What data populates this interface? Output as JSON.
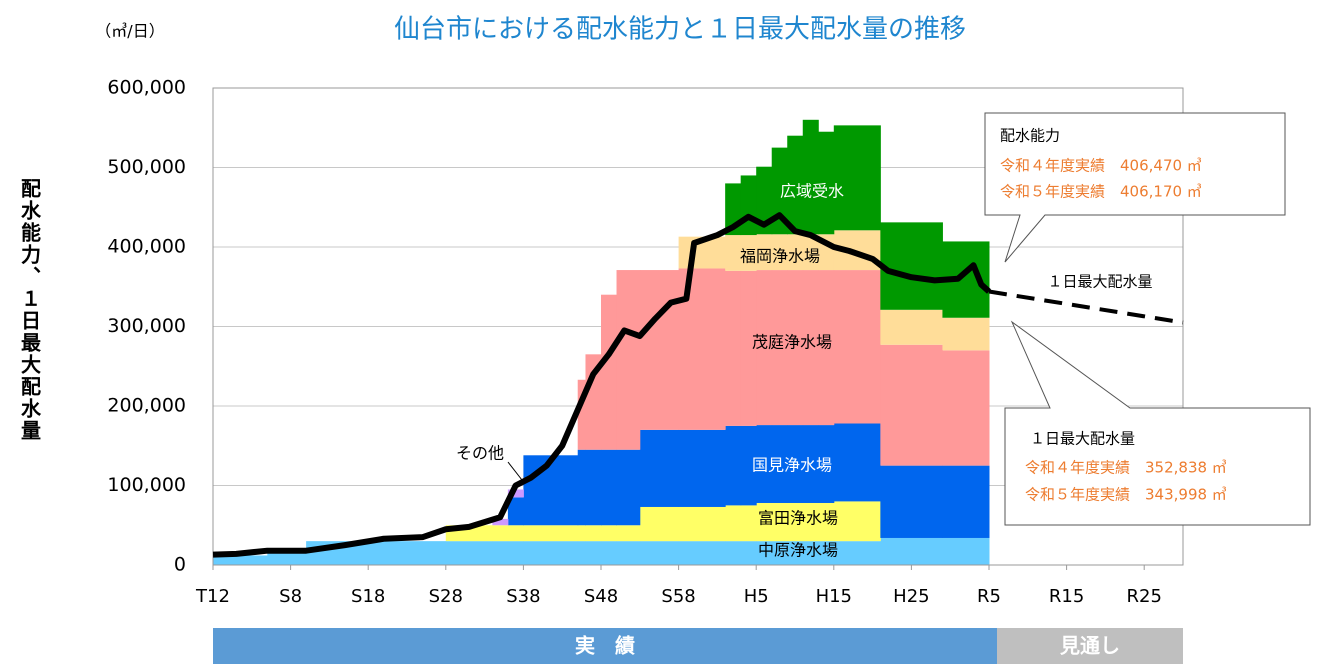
{
  "chart_data": {
    "type": "stacked-step-area-line",
    "title": "仙台市における配水能力と１日最大配水量の推移",
    "unit_label": "（㎥/日）",
    "ylabel": "配水能力、１日最大配水量",
    "xlim": [
      1923,
      2048
    ],
    "xticks": [
      {
        "value": 1923,
        "label": "T12"
      },
      {
        "value": 1933,
        "label": "S8"
      },
      {
        "value": 1943,
        "label": "S18"
      },
      {
        "value": 1953,
        "label": "S28"
      },
      {
        "value": 1963,
        "label": "S38"
      },
      {
        "value": 1973,
        "label": "S48"
      },
      {
        "value": 1983,
        "label": "S58"
      },
      {
        "value": 1993,
        "label": "H5"
      },
      {
        "value": 2003,
        "label": "H15"
      },
      {
        "value": 2013,
        "label": "H25"
      },
      {
        "value": 2023,
        "label": "R5"
      },
      {
        "value": 2033,
        "label": "R15"
      },
      {
        "value": 2043,
        "label": "R25"
      }
    ],
    "ylim": [
      0,
      600000
    ],
    "yticks": [
      0,
      {
        "value": 100000,
        "label": "100,000"
      },
      {
        "value": 200000,
        "label": "200,000"
      },
      {
        "value": 300000,
        "label": "300,000"
      },
      {
        "value": 400000,
        "label": "400,000"
      },
      {
        "value": 500000,
        "label": "500,000"
      },
      {
        "value": 600000,
        "label": "600,000"
      }
    ],
    "grid": true,
    "x": [
      1923,
      1930,
      1935,
      1953,
      1959,
      1961,
      1963,
      1970,
      1971,
      1973,
      1975,
      1978,
      1983,
      1989,
      1991,
      1993,
      1995,
      1997,
      1999,
      2001,
      2003,
      2009,
      2017,
      2023
    ],
    "series": [
      {
        "name": "中原浄水場",
        "color": "#66ccff",
        "values": [
          12000,
          18000,
          30000,
          30000,
          30000,
          30000,
          30000,
          30000,
          30000,
          30000,
          30000,
          30000,
          30000,
          30000,
          30000,
          30000,
          30000,
          30000,
          30000,
          30000,
          30000,
          34000,
          34000,
          34000
        ]
      },
      {
        "name": "富田浄水場",
        "color": "#ffff66",
        "values": [
          0,
          0,
          0,
          20000,
          20000,
          20000,
          20000,
          20000,
          20000,
          20000,
          20000,
          43000,
          43000,
          45000,
          45000,
          48000,
          48000,
          48000,
          48000,
          48000,
          50000,
          0,
          0,
          0
        ]
      },
      {
        "name": "国見浄水場",
        "color": "#0066ee",
        "values": [
          0,
          0,
          0,
          0,
          0,
          35000,
          88000,
          95000,
          95000,
          95000,
          95000,
          97000,
          97000,
          100000,
          100000,
          98000,
          98000,
          98000,
          98000,
          98000,
          98000,
          91000,
          91000,
          91000
        ]
      },
      {
        "name": "その他",
        "color": "#cc99ff",
        "values": [
          0,
          0,
          0,
          0,
          8000,
          10000,
          0,
          0,
          0,
          0,
          0,
          0,
          0,
          0,
          0,
          0,
          0,
          0,
          0,
          0,
          0,
          0,
          0,
          0
        ]
      },
      {
        "name": "茂庭浄水場",
        "color": "#ff9999",
        "values": [
          0,
          0,
          0,
          0,
          0,
          0,
          0,
          88000,
          120000,
          195000,
          226000,
          201000,
          203000,
          195000,
          195000,
          195000,
          195000,
          195000,
          195000,
          195000,
          193000,
          152000,
          145000,
          145000
        ]
      },
      {
        "name": "福岡浄水場",
        "color": "#ffdd99",
        "values": [
          0,
          0,
          0,
          0,
          0,
          0,
          0,
          0,
          0,
          0,
          0,
          0,
          40000,
          45000,
          45000,
          45000,
          45000,
          45000,
          45000,
          45000,
          50000,
          44000,
          41000,
          41000
        ]
      },
      {
        "name": "広域受水",
        "color": "#009900",
        "values": [
          0,
          0,
          0,
          0,
          0,
          0,
          0,
          0,
          0,
          0,
          0,
          0,
          0,
          65000,
          75000,
          85000,
          109000,
          124000,
          144000,
          129000,
          132000,
          110000,
          96000,
          96000
        ]
      }
    ],
    "line": {
      "name": "１日最大配水量",
      "color": "#000000",
      "x": [
        1923,
        1926,
        1930,
        1935,
        1940,
        1945,
        1950,
        1953,
        1956,
        1960,
        1962,
        1964,
        1966,
        1968,
        1970,
        1972,
        1974,
        1976,
        1978,
        1980,
        1982,
        1984,
        1985,
        1988,
        1990,
        1992,
        1994,
        1996,
        1998,
        2000,
        2003,
        2005,
        2008,
        2010,
        2013,
        2016,
        2019,
        2021,
        2022,
        2023
      ],
      "values": [
        13000,
        14000,
        18000,
        18000,
        25000,
        33000,
        35000,
        45000,
        48000,
        60000,
        100000,
        110000,
        125000,
        150000,
        195000,
        240000,
        265000,
        295000,
        288000,
        310000,
        330000,
        335000,
        405000,
        415000,
        425000,
        438000,
        428000,
        440000,
        420000,
        415000,
        400000,
        395000,
        385000,
        370000,
        362000,
        358000,
        360000,
        377000,
        352838,
        343998
      ]
    },
    "projection": {
      "x": [
        2023,
        2048
      ],
      "values": [
        343998,
        305000
      ]
    },
    "annotations": {
      "capacity": {
        "title": "配水能力",
        "lines": [
          "令和４年度実績　406,470 ㎥",
          "令和５年度実績　406,170 ㎥"
        ]
      },
      "maximum": {
        "title": "１日最大配水量",
        "lines": [
          "令和４年度実績　352,838 ㎥",
          "令和５年度実績　343,998 ㎥"
        ]
      }
    },
    "periods": [
      "実　績",
      "見通し"
    ]
  }
}
